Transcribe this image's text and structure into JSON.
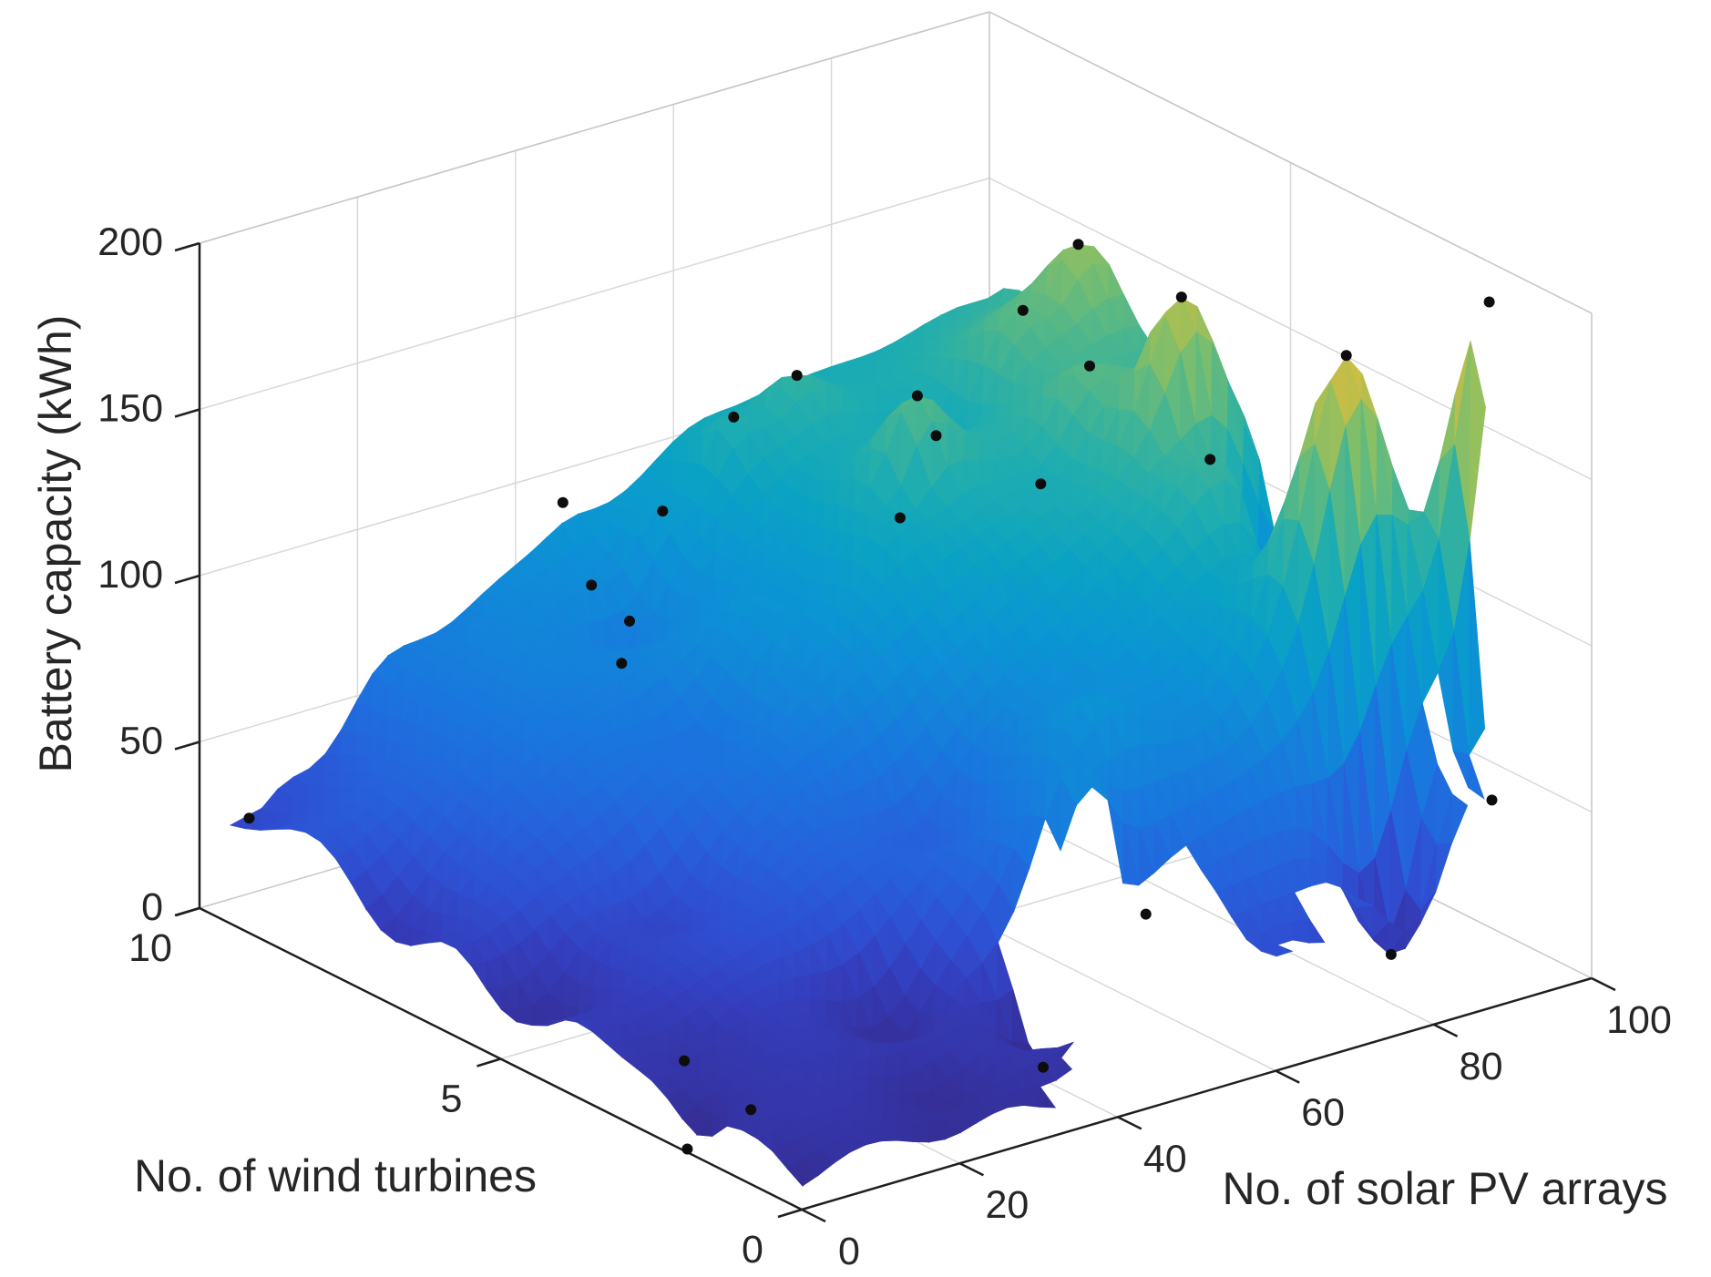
{
  "figure": {
    "background": "#ffffff",
    "text_color": "#262626",
    "axis_line_color": "#1f1f1f",
    "grid_line_color": "#d8d8d8",
    "box_edge_color": "#c6c6c6",
    "point_color": "#0d0d0d"
  },
  "chart_data": {
    "type": "surface",
    "title": "",
    "xlabel": "No. of wind turbines",
    "ylabel": "No. of solar PV arrays",
    "zlabel": "Battery capacity (kWh)",
    "xlim": [
      0,
      10
    ],
    "ylim": [
      0,
      100
    ],
    "zlim": [
      0,
      200
    ],
    "xticks": [
      0,
      5,
      10
    ],
    "yticks": [
      0,
      20,
      40,
      60,
      80,
      100
    ],
    "zticks": [
      0,
      50,
      100,
      150,
      200
    ],
    "grid": true,
    "legend_position": "none",
    "colormap": "parula",
    "colormap_stops": [
      [
        0.0,
        "#352a87"
      ],
      [
        0.05,
        "#3533a3"
      ],
      [
        0.1,
        "#343dbb"
      ],
      [
        0.15,
        "#2f4ed1"
      ],
      [
        0.22,
        "#2563dc"
      ],
      [
        0.29,
        "#1a75de"
      ],
      [
        0.36,
        "#1286d9"
      ],
      [
        0.43,
        "#0b95d3"
      ],
      [
        0.5,
        "#0aa2c4"
      ],
      [
        0.57,
        "#1fadb0"
      ],
      [
        0.63,
        "#3cb399"
      ],
      [
        0.69,
        "#62ba7e"
      ],
      [
        0.75,
        "#8dbf62"
      ],
      [
        0.81,
        "#bbbe4c"
      ],
      [
        0.87,
        "#e0bd3b"
      ],
      [
        0.92,
        "#f2c32f"
      ],
      [
        0.96,
        "#f7da22"
      ],
      [
        1.0,
        "#f9fb15"
      ]
    ],
    "scatter_points": [
      {
        "x": 1.9,
        "y": 0,
        "z": 1
      },
      {
        "x": 1.5,
        "y": 5,
        "z": 13
      },
      {
        "x": 3,
        "y": 8,
        "z": 12
      },
      {
        "x": 9.7,
        "y": 4,
        "z": 27
      },
      {
        "x": 1.5,
        "y": 42,
        "z": 0
      },
      {
        "x": 1.5,
        "y": 55,
        "z": 37
      },
      {
        "x": 1.1,
        "y": 83,
        "z": 9
      },
      {
        "x": 1,
        "y": 95,
        "z": 48
      },
      {
        "x": 10,
        "y": 46,
        "z": 90
      },
      {
        "x": 9,
        "y": 42,
        "z": 77
      },
      {
        "x": 8.5,
        "y": 43,
        "z": 70
      },
      {
        "x": 8.5,
        "y": 42,
        "z": 58
      },
      {
        "x": 9,
        "y": 51,
        "z": 93
      },
      {
        "x": 9,
        "y": 60,
        "z": 115
      },
      {
        "x": 6.5,
        "y": 62,
        "z": 106
      },
      {
        "x": 9,
        "y": 68,
        "z": 122
      },
      {
        "x": 7,
        "y": 68,
        "z": 134
      },
      {
        "x": 8,
        "y": 78,
        "z": 106
      },
      {
        "x": 6,
        "y": 76,
        "z": 111
      },
      {
        "x": 6.5,
        "y": 86,
        "z": 135
      },
      {
        "x": 4.5,
        "y": 86,
        "z": 125
      },
      {
        "x": 8,
        "y": 96,
        "z": 151
      },
      {
        "x": 8,
        "y": 89,
        "z": 136
      },
      {
        "x": 5.5,
        "y": 90,
        "z": 162
      },
      {
        "x": 2.5,
        "y": 88,
        "z": 173
      },
      {
        "x": 1.7,
        "y": 100,
        "z": 188
      }
    ],
    "surface_control_points": [
      {
        "x": 0,
        "y": 0,
        "z": 2
      },
      {
        "x": 0,
        "y": 20,
        "z": 4
      },
      {
        "x": 0,
        "y": 35,
        "z": 3
      },
      {
        "x": 1,
        "y": 25,
        "z": 5
      },
      {
        "x": 2.5,
        "y": 30,
        "z": 7
      },
      {
        "x": 5,
        "y": 5,
        "z": 8
      },
      {
        "x": 7,
        "y": 0,
        "z": 15
      },
      {
        "x": 10,
        "y": 0,
        "z": 20
      },
      {
        "x": 10,
        "y": 10,
        "z": 35
      },
      {
        "x": 10,
        "y": 25,
        "z": 65
      },
      {
        "x": 5,
        "y": 20,
        "z": 25
      },
      {
        "x": 6.5,
        "y": 35,
        "z": 55
      },
      {
        "x": 4,
        "y": 45,
        "z": 42
      },
      {
        "x": 2.2,
        "y": 52,
        "z": 78
      },
      {
        "x": 3,
        "y": 60,
        "z": 85
      },
      {
        "x": 7,
        "y": 50,
        "z": 85
      },
      {
        "x": 10,
        "y": 65,
        "z": 107
      },
      {
        "x": 10,
        "y": 80,
        "z": 111
      },
      {
        "x": 10,
        "y": 100,
        "z": 114
      },
      {
        "x": 9.3,
        "y": 100,
        "z": 125
      },
      {
        "x": 3,
        "y": 100,
        "z": 30
      },
      {
        "x": 4.2,
        "y": 97,
        "z": 22
      },
      {
        "x": 0.5,
        "y": 62,
        "z": 30
      },
      {
        "x": 0.3,
        "y": 70,
        "z": 26
      }
    ]
  }
}
